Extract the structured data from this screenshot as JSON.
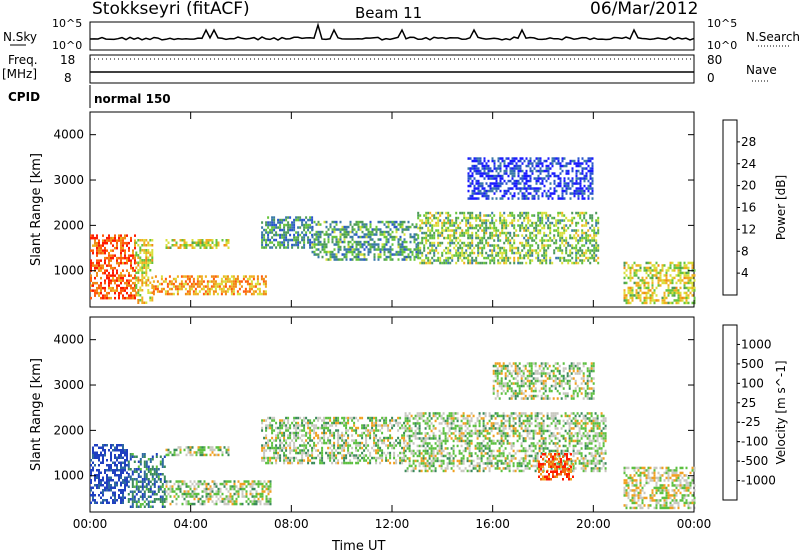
{
  "header": {
    "station": "Stokkseyri (fitACF)",
    "beam": "Beam 11",
    "date": "06/Mar/2012"
  },
  "panels": {
    "nsky": {
      "left_label": "N.Sky",
      "right_label": "N.Search",
      "top_tick": "10^5",
      "bottom_tick": "10^0"
    },
    "freq": {
      "left_label": "Freq.",
      "unit_label": "[MHz]",
      "right_label": "Nave",
      "left_ticks": [
        "18",
        "8"
      ],
      "right_ticks": [
        "80",
        "0"
      ]
    },
    "cpid": {
      "left_label": "CPID",
      "mode": "normal 150"
    }
  },
  "chart_data": [
    {
      "type": "heatmap",
      "title": "",
      "ylabel": "Slant Range [km]",
      "xlabel": "",
      "x_ticks": [
        "00:00",
        "04:00",
        "08:00",
        "12:00",
        "16:00",
        "20:00",
        "00:00"
      ],
      "y_ticks": [
        "1000",
        "2000",
        "3000",
        "4000"
      ],
      "ylim": [
        200,
        4500
      ],
      "colorbar": {
        "label": "Power [dB]",
        "ticks": [
          "4",
          "8",
          "12",
          "16",
          "20",
          "24",
          "28"
        ],
        "colors": [
          "#1a1aff",
          "#2a55cc",
          "#3a7aa8",
          "#4d9a5a",
          "#66c43c",
          "#d8e03c",
          "#f0b020",
          "#f08a14",
          "#ff5a0a",
          "#ff1a00"
        ]
      },
      "regions": [
        {
          "time_h": [
            0.0,
            1.8
          ],
          "range_km": [
            400,
            1800
          ],
          "level": 0.85
        },
        {
          "time_h": [
            1.8,
            2.5
          ],
          "range_km": [
            300,
            1700
          ],
          "level": 0.6
        },
        {
          "time_h": [
            2.5,
            7.0
          ],
          "range_km": [
            500,
            900
          ],
          "level": 0.7
        },
        {
          "time_h": [
            3.0,
            5.5
          ],
          "range_km": [
            1500,
            1700
          ],
          "level": 0.55
        },
        {
          "time_h": [
            6.8,
            8.8
          ],
          "range_km": [
            1500,
            2200
          ],
          "level": 0.3
        },
        {
          "time_h": [
            8.8,
            13.0
          ],
          "range_km": [
            1250,
            2100
          ],
          "level": 0.35
        },
        {
          "time_h": [
            13.0,
            20.2
          ],
          "range_km": [
            1150,
            2300
          ],
          "level": 0.45
        },
        {
          "time_h": [
            15.0,
            20.0
          ],
          "range_km": [
            2600,
            3500
          ],
          "level": 0.1
        },
        {
          "time_h": [
            21.2,
            24.0
          ],
          "range_km": [
            300,
            1200
          ],
          "level": 0.55
        }
      ]
    },
    {
      "type": "heatmap",
      "title": "",
      "ylabel": "Slant Range [km]",
      "xlabel": "Time UT",
      "x_ticks": [
        "00:00",
        "04:00",
        "08:00",
        "12:00",
        "16:00",
        "20:00",
        "00:00"
      ],
      "y_ticks": [
        "1000",
        "2000",
        "3000",
        "4000"
      ],
      "ylim": [
        200,
        4500
      ],
      "colorbar": {
        "label": "Velocity [m s^-1]",
        "ticks": [
          "1000",
          "500",
          "100",
          "25",
          "-25",
          "-100",
          "-500",
          "-1000"
        ],
        "colors": [
          "#2040c0",
          "#2e6aa0",
          "#3a8a5a",
          "#5cc040",
          "#c8c8c0",
          "#f0a020",
          "#f06a10",
          "#ff1a00"
        ]
      },
      "regions": [
        {
          "time_h": [
            0.0,
            1.5
          ],
          "range_km": [
            400,
            1700
          ],
          "level": 0.05
        },
        {
          "time_h": [
            1.5,
            3.0
          ],
          "range_km": [
            300,
            1500
          ],
          "level": 0.25
        },
        {
          "time_h": [
            3.0,
            7.2
          ],
          "range_km": [
            400,
            900
          ],
          "level": 0.5
        },
        {
          "time_h": [
            3.0,
            5.5
          ],
          "range_km": [
            1450,
            1650
          ],
          "level": 0.5
        },
        {
          "time_h": [
            6.8,
            12.5
          ],
          "range_km": [
            1300,
            2300
          ],
          "level": 0.5
        },
        {
          "time_h": [
            12.5,
            20.5
          ],
          "range_km": [
            1100,
            2400
          ],
          "level": 0.5
        },
        {
          "time_h": [
            16.0,
            20.0
          ],
          "range_km": [
            2700,
            3500
          ],
          "level": 0.5
        },
        {
          "time_h": [
            17.8,
            19.2
          ],
          "range_km": [
            900,
            1500
          ],
          "level": 0.85
        },
        {
          "time_h": [
            21.2,
            24.0
          ],
          "range_km": [
            300,
            1200
          ],
          "level": 0.55
        }
      ]
    }
  ]
}
